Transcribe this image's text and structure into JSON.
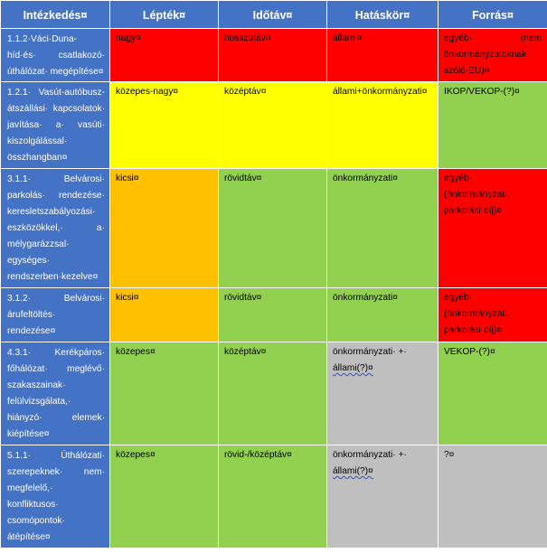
{
  "headers": [
    "Intézkedés¤",
    "Lépték¤",
    "Időtáv¤",
    "Hatáskör¤",
    "Forrás¤"
  ],
  "rows": [
    {
      "intezkedes": "1.1.2·Váci·Duna-híd·és· csatlakozó· úthálózat· megépítése¤",
      "leptek": "nagy¤",
      "idotav": "hosszútáv¤",
      "hataskor": "állami¤",
      "forras": "egyéb· (nem önkormányzatoknak szóló·EU)¤",
      "colors": [
        "red",
        "red",
        "red",
        "red"
      ]
    },
    {
      "intezkedes": "1.2.1· Vasút-autóbusz-átszállási· kapcsolatok· javítása· a· vasúti· kiszolgálással· összhangban¤",
      "leptek": "közepes-nagy¤",
      "idotav": "középtáv¤",
      "hataskor": "állami+önkormányzati¤",
      "forras": "IKOP/VEKOP-(?)¤",
      "colors": [
        "yellow",
        "yellow",
        "yellow",
        "green"
      ]
    },
    {
      "intezkedes": "3.1.1· Belvárosi· parkolás· rendezése· keresletszabályozási· eszközökkel,· a· mélygarázzsal· egységes· rendszerben·kezelve¤",
      "leptek": "kicsi¤",
      "idotav": "rövidtáv¤",
      "hataskor": "önkormányzati¤",
      "forras": "egyéb· (önkormányzati,· parkolási·díj)¤",
      "colors": [
        "orange",
        "green",
        "green",
        "red"
      ]
    },
    {
      "intezkedes": "3.1.2· Belvárosi· árufeltöltés· rendezése¤",
      "leptek": "kicsi¤",
      "idotav": "rövidtáv¤",
      "hataskor": "önkormányzati¤",
      "forras": "egyéb· (önkormányzati,· parkolási·díj)¤",
      "colors": [
        "orange",
        "green",
        "green",
        "red"
      ]
    },
    {
      "intezkedes": "4.3.1· Kerékpáros· főhálózat· meglévő· szakaszainak· felülvizsgálata,· hiányzó· elemek· kiépítése¤",
      "leptek": "közepes¤",
      "idotav": "középtáv¤",
      "hataskor_main": "önkormányzati· +·",
      "hataskor_sub": "állami(?)¤",
      "forras": "VEKOP-(?)¤",
      "colors": [
        "green",
        "green",
        "gray",
        "green"
      ]
    },
    {
      "intezkedes": "5.1.1· Úthálózati· szerepeknek· nem· megfelelő,· konfliktusos· csomópontok· átépítése¤",
      "leptek": "közepes¤",
      "idotav": "rövid-/középtáv¤",
      "hataskor_main": "önkormányzati· +·",
      "hataskor_sub": "állami(?)¤",
      "forras": "?¤",
      "colors": [
        "green",
        "green",
        "gray",
        "gray"
      ]
    }
  ],
  "colors": {
    "header": "#4472c4",
    "red": "#ff0000",
    "yellow": "#ffff00",
    "orange": "#ffc000",
    "green": "#92d050",
    "gray": "#bfbfbf"
  }
}
